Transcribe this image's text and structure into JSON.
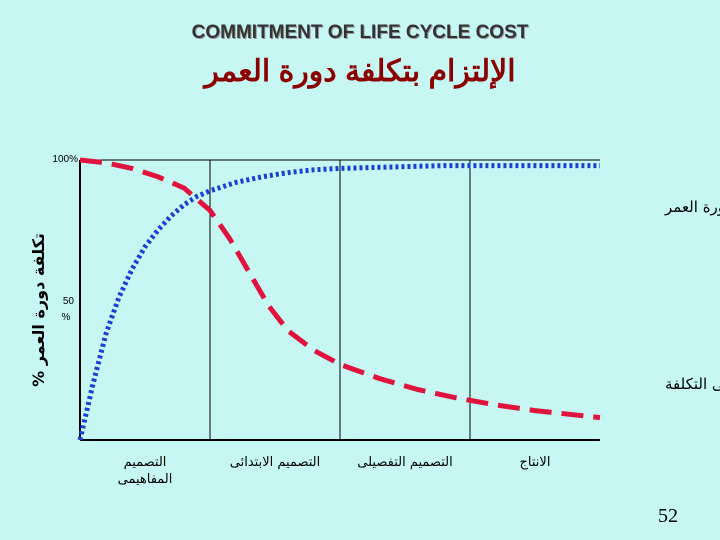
{
  "page": {
    "title_en": "COMMITMENT OF LIFE CYCLE COST",
    "title_ar": "الإلتزام بتكلفة دورة العمر",
    "page_number": "52"
  },
  "chart_data": {
    "type": "line",
    "title": "COMMITMENT OF LIFE CYCLE COST",
    "ylabel": "% تكلفة دورة العمر",
    "y_ticks": [
      {
        "value": 100,
        "label": "100%"
      },
      {
        "value": 50,
        "label": "50"
      }
    ],
    "y_tick_unit": "%",
    "ylim": [
      0,
      100
    ],
    "xlim": [
      0,
      4
    ],
    "categories": [
      "التصميم المفاهيمى",
      "التصميم الابتدائى",
      "التصميم التفصيلى",
      "الانتاج"
    ],
    "category_label_lines": [
      [
        "التصميم",
        "المفاهيمى"
      ],
      [
        "التصميم الابتدائى"
      ],
      [
        "التصميم التفصيلى"
      ],
      [
        "الانتاج"
      ]
    ],
    "series": [
      {
        "name": "التكلفة التراكمية لدورة العمر",
        "color": "#1a3fd6",
        "style": "dotted",
        "x": [
          0,
          0.1,
          0.2,
          0.3,
          0.4,
          0.5,
          0.6,
          0.7,
          0.8,
          0.9,
          1.0,
          1.2,
          1.4,
          1.6,
          1.8,
          2.0,
          2.4,
          2.8,
          3.2,
          3.6,
          4.0
        ],
        "y": [
          0,
          20,
          38,
          51,
          61,
          69,
          75,
          80,
          84,
          87,
          89,
          92,
          94,
          95.5,
          96.5,
          97,
          97.5,
          98,
          98,
          98,
          98
        ]
      },
      {
        "name": "فرصة التوفير فى التكلفة",
        "color": "#e0133e",
        "style": "dashed",
        "x": [
          0,
          0.2,
          0.4,
          0.6,
          0.8,
          1.0,
          1.15,
          1.3,
          1.45,
          1.6,
          1.8,
          2.0,
          2.3,
          2.6,
          2.9,
          3.2,
          3.5,
          3.8,
          4.0
        ],
        "y": [
          100,
          99,
          97,
          94,
          90,
          82,
          72,
          60,
          48,
          39,
          32,
          27,
          22,
          18,
          15,
          12.5,
          10.5,
          9,
          8
        ]
      }
    ],
    "grid": false,
    "legend": "inline labels"
  }
}
